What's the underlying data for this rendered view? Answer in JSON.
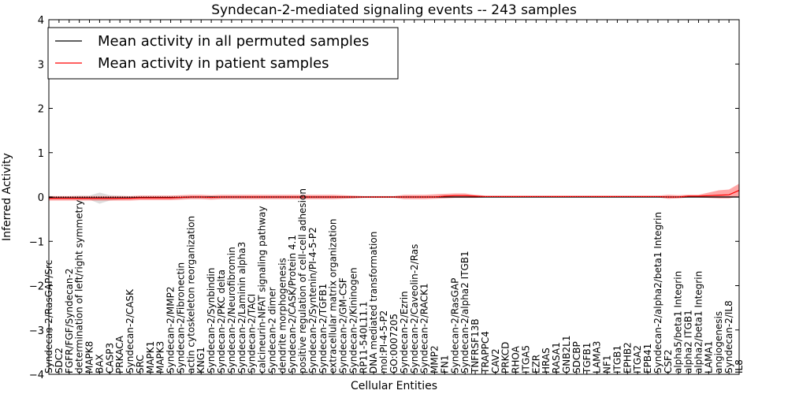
{
  "chart_data": {
    "type": "line",
    "title": "Syndecan-2-mediated signaling events -- 243 samples",
    "xlabel": "Cellular Entities",
    "ylabel": "Inferred Activity",
    "ylim": [
      -4,
      4
    ],
    "yticks": [
      -4,
      -3,
      -2,
      -1,
      0,
      1,
      2,
      3,
      4
    ],
    "legend": {
      "position": "top-left",
      "entries": [
        {
          "label": "Mean activity in all permuted samples",
          "color": "#000000"
        },
        {
          "label": "Mean activity in patient samples",
          "color": "#ff0000"
        }
      ]
    },
    "categories": [
      "Syndecan-2/RasGAP/Src",
      "SDC2",
      "FGFR/FGF/Syndecan-2",
      "determination of left/right symmetry",
      "MAPK8",
      "BAX",
      "CASP3",
      "PRKACA",
      "Syndecan-2/CASK",
      "SRC",
      "MAPK1",
      "MAPK3",
      "Syndecan-2/MMP2",
      "Syndecan-2/Fibronectin",
      "actin cytoskeleton reorganization",
      "KNG1",
      "Syndecan-2/Synbindin",
      "Syndecan-2/PKC delta",
      "Syndecan-2/Neurofibromin",
      "Syndecan-2/Laminin alpha3",
      "Syndecan-2/TACI",
      "calcineurin-NFAT signaling pathway",
      "Syndecan-2 dimer",
      "dendrite morphogenesis",
      "Syndecan-2/CASK/Protein 4.1",
      "positive regulation of cell-cell adhesion",
      "Syndecan-2/Syntenin/PI-4-5-P2",
      "Syndecan-2/TGFB1",
      "extracellular matrix organization",
      "Syndecan-2/GM-CSF",
      "Syndecan-2/Kininogen",
      "RP11-540L11.1",
      "DNA mediated transformation",
      "mol:PI-4-5-P2",
      "GO:0007205",
      "Syndecan-2/Ezrin",
      "Syndecan-2/Caveolin-2/Ras",
      "Syndecan-2/RACK1",
      "MMP2",
      "FN1",
      "Syndecan-2/RasGAP",
      "Syndecan-2/alpha2 ITGB1",
      "TNFRSF13B",
      "TRAPPC4",
      "CAV2",
      "PRKCD",
      "RHOA",
      "ITGA5",
      "EZR",
      "HRAS",
      "RASA1",
      "GNB2L1",
      "SDCBP",
      "TGFB1",
      "LAMA3",
      "NF1",
      "ITGB1",
      "EPHB2",
      "ITGA2",
      "EPB41",
      "Syndecan-2/alpha2/beta1 Integrin",
      "CSF2",
      "alpha5/beta1 Integrin",
      "alpha2 ITGB1",
      "alpha2/beta1 Integrin",
      "LAMA1",
      "angiogenesis",
      "Syndecan-2/IL8",
      "IL8"
    ],
    "series": [
      {
        "name": "Mean activity in all permuted samples",
        "color": "#000000",
        "values": [
          -0.02,
          -0.02,
          -0.02,
          -0.02,
          -0.02,
          -0.02,
          -0.02,
          -0.02,
          -0.02,
          -0.01,
          -0.01,
          -0.01,
          -0.01,
          -0.01,
          0,
          0,
          0,
          0,
          0,
          0,
          0,
          0,
          0,
          0,
          0,
          0,
          0,
          0,
          0,
          0,
          0,
          0,
          0,
          0,
          0,
          0,
          0,
          0,
          0,
          0,
          0,
          0,
          0,
          0,
          0,
          0,
          0,
          0,
          0,
          0,
          0,
          0,
          0,
          0,
          0,
          0,
          0,
          0,
          0,
          0,
          0,
          0,
          0,
          0,
          0,
          0,
          0,
          0,
          0
        ],
        "lower": [
          -0.05,
          -0.05,
          -0.05,
          -0.06,
          -0.06,
          -0.15,
          -0.08,
          -0.06,
          -0.05,
          -0.04,
          -0.04,
          -0.04,
          -0.04,
          -0.04,
          -0.03,
          -0.03,
          -0.03,
          -0.03,
          -0.03,
          -0.03,
          -0.03,
          -0.03,
          -0.03,
          -0.03,
          -0.03,
          -0.03,
          -0.03,
          -0.03,
          -0.03,
          -0.03,
          -0.03,
          -0.02,
          -0.02,
          -0.02,
          -0.02,
          -0.02,
          -0.02,
          -0.02,
          -0.02,
          -0.02,
          -0.02,
          -0.02,
          -0.02,
          -0.02,
          -0.02,
          -0.02,
          -0.02,
          -0.02,
          -0.02,
          -0.02,
          -0.02,
          -0.02,
          -0.02,
          -0.02,
          -0.02,
          -0.02,
          -0.02,
          -0.02,
          -0.02,
          -0.02,
          -0.02,
          -0.02,
          -0.02,
          -0.02,
          -0.02,
          -0.02,
          -0.02,
          -0.02,
          -0.02
        ],
        "upper": [
          0.02,
          0.02,
          0.02,
          0.03,
          0.03,
          0.1,
          0.04,
          0.03,
          0.02,
          0.02,
          0.02,
          0.02,
          0.02,
          0.02,
          0.02,
          0.02,
          0.02,
          0.02,
          0.02,
          0.02,
          0.02,
          0.02,
          0.02,
          0.02,
          0.02,
          0.02,
          0.02,
          0.02,
          0.02,
          0.02,
          0.02,
          0.02,
          0.02,
          0.02,
          0.02,
          0.02,
          0.02,
          0.02,
          0.02,
          0.02,
          0.02,
          0.02,
          0.02,
          0.02,
          0.02,
          0.02,
          0.02,
          0.02,
          0.02,
          0.02,
          0.02,
          0.02,
          0.02,
          0.02,
          0.02,
          0.02,
          0.02,
          0.02,
          0.02,
          0.02,
          0.02,
          0.02,
          0.02,
          0.02,
          0.02,
          0.02,
          0.02,
          0.02,
          0.02
        ]
      },
      {
        "name": "Mean activity in patient samples",
        "color": "#ff0000",
        "values": [
          -0.03,
          -0.03,
          -0.03,
          -0.03,
          -0.03,
          -0.03,
          -0.03,
          -0.03,
          -0.03,
          -0.02,
          -0.02,
          -0.02,
          -0.02,
          -0.01,
          0,
          0,
          -0.01,
          0,
          0,
          0,
          0,
          0,
          0,
          0,
          0,
          0,
          0,
          0,
          0,
          0,
          0,
          0,
          0,
          0,
          0,
          0,
          0,
          0,
          0,
          0.02,
          0.03,
          0.03,
          0.02,
          0.01,
          0.01,
          0.01,
          0.01,
          0.01,
          0.01,
          0.01,
          0.01,
          0.01,
          0.01,
          0.01,
          0.01,
          0.01,
          0.01,
          0.01,
          0.01,
          0.01,
          0.01,
          0,
          0,
          0.02,
          0.02,
          0.03,
          0.04,
          0.05,
          0.15
        ],
        "lower": [
          -0.08,
          -0.08,
          -0.08,
          -0.08,
          -0.08,
          -0.08,
          -0.08,
          -0.08,
          -0.08,
          -0.07,
          -0.07,
          -0.07,
          -0.07,
          -0.06,
          -0.05,
          -0.05,
          -0.06,
          -0.05,
          -0.05,
          -0.05,
          -0.05,
          -0.05,
          -0.05,
          -0.05,
          -0.05,
          -0.05,
          -0.05,
          -0.05,
          -0.05,
          -0.04,
          -0.03,
          -0.02,
          -0.02,
          -0.02,
          -0.02,
          -0.05,
          -0.05,
          -0.05,
          -0.04,
          -0.03,
          -0.02,
          -0.02,
          -0.02,
          -0.01,
          -0.01,
          -0.01,
          -0.01,
          -0.01,
          -0.01,
          -0.01,
          -0.01,
          -0.01,
          -0.01,
          -0.01,
          -0.01,
          -0.01,
          -0.01,
          -0.01,
          -0.01,
          -0.01,
          -0.01,
          -0.04,
          -0.03,
          -0.01,
          -0.01,
          -0.02,
          -0.03,
          -0.03,
          0.02
        ],
        "upper": [
          0.02,
          0.02,
          0.02,
          0.02,
          0.02,
          0.02,
          0.02,
          0.02,
          0.02,
          0.03,
          0.03,
          0.03,
          0.03,
          0.04,
          0.05,
          0.05,
          0.04,
          0.05,
          0.05,
          0.05,
          0.05,
          0.05,
          0.05,
          0.05,
          0.05,
          0.05,
          0.05,
          0.05,
          0.05,
          0.04,
          0.03,
          0.02,
          0.02,
          0.02,
          0.02,
          0.05,
          0.05,
          0.05,
          0.06,
          0.07,
          0.08,
          0.08,
          0.05,
          0.03,
          0.03,
          0.03,
          0.03,
          0.03,
          0.03,
          0.03,
          0.03,
          0.03,
          0.03,
          0.03,
          0.03,
          0.03,
          0.03,
          0.03,
          0.03,
          0.03,
          0.03,
          0.05,
          0.04,
          0.05,
          0.05,
          0.1,
          0.15,
          0.17,
          0.3
        ]
      }
    ]
  }
}
